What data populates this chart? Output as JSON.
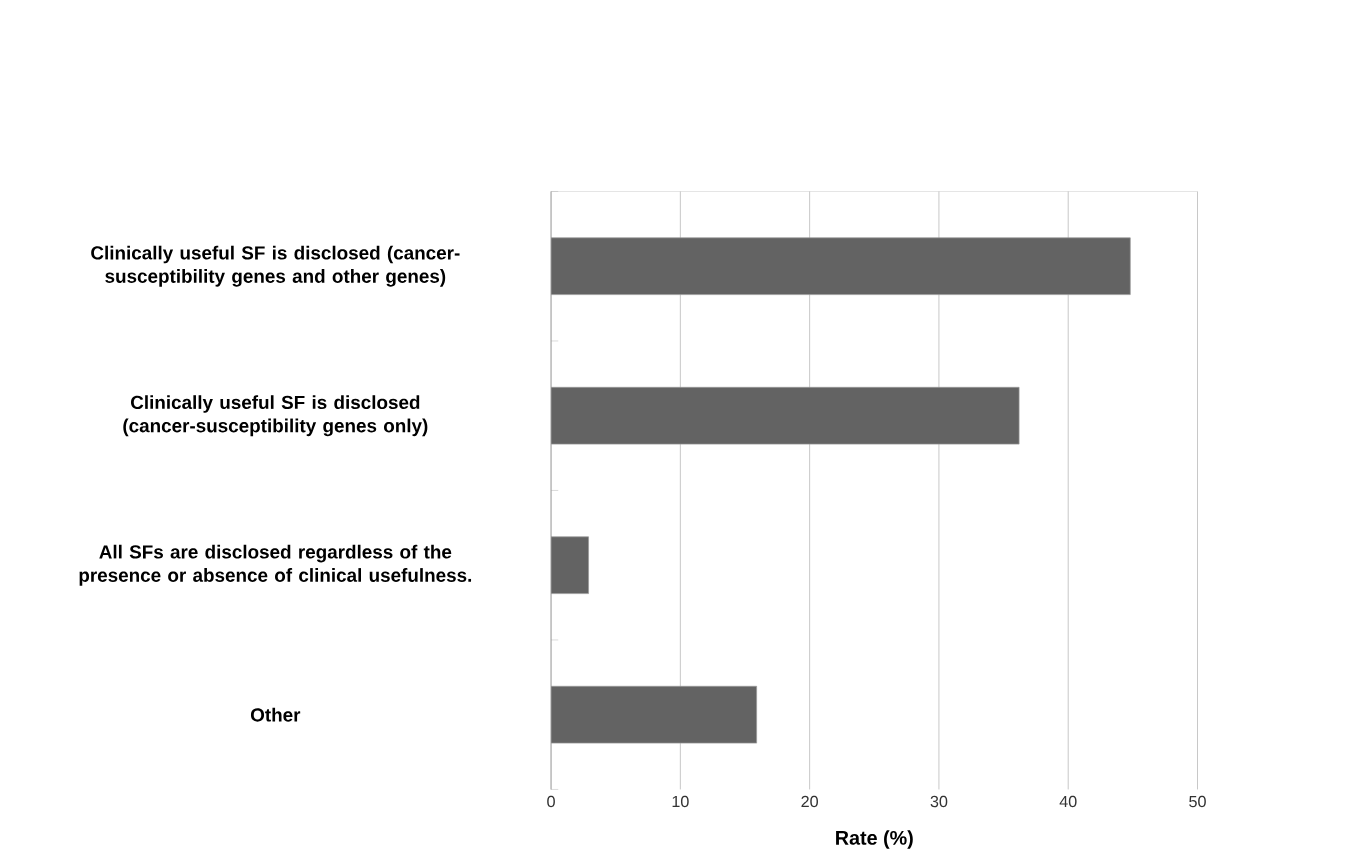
{
  "chart_data": {
    "type": "bar",
    "orientation": "horizontal",
    "xlabel": "Rate (%)",
    "categories": [
      "Clinically useful SF is disclosed (cancer-susceptibility genes and other genes)",
      "Clinically useful SF is disclosed (cancer-susceptibility genes only)",
      "All SFs are disclosed regardless of the presence or absence of clinical usefulness.",
      "Other"
    ],
    "values": [
      44.8,
      36.2,
      2.9,
      15.9
    ],
    "color": "#636363",
    "xlim": [
      0,
      50
    ],
    "xticks": [
      0,
      10,
      20,
      30,
      40,
      50
    ],
    "grid": "x"
  }
}
